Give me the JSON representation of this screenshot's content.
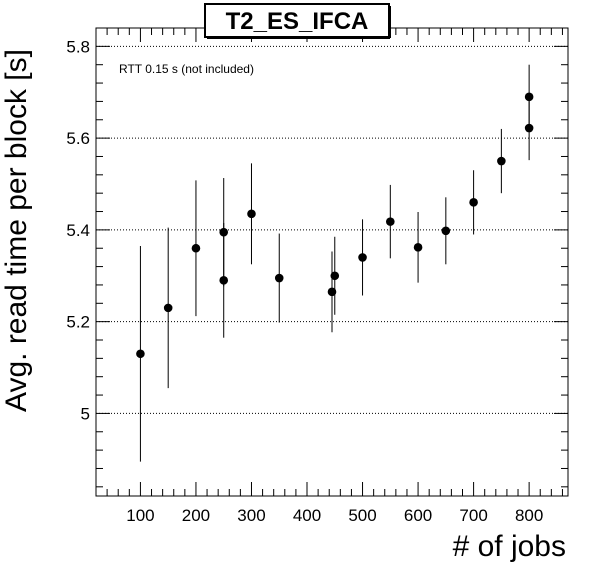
{
  "chart_data": {
    "type": "scatter",
    "title": "T2_ES_IFCA",
    "xlabel": "# of jobs",
    "ylabel": "Avg. read time per block [s]",
    "annotation": "RTT 0.15 s (not included)",
    "xlim": [
      20,
      870
    ],
    "ylim": [
      4.82,
      5.84
    ],
    "x_ticks": [
      100,
      200,
      300,
      400,
      500,
      600,
      700,
      800
    ],
    "x_tick_labels": [
      "100",
      "200",
      "300",
      "400",
      "500",
      "600",
      "700",
      "800"
    ],
    "y_ticks": [
      5.0,
      5.2,
      5.4,
      5.6,
      5.8
    ],
    "y_tick_labels": [
      "5",
      "5.2",
      "5.4",
      "5.6",
      "5.8"
    ],
    "grid": "horizontal dotted",
    "color": "#000000",
    "points": [
      {
        "x": 100,
        "y": 5.13,
        "err": 0.235
      },
      {
        "x": 150,
        "y": 5.23,
        "err": 0.175
      },
      {
        "x": 200,
        "y": 5.36,
        "err": 0.148
      },
      {
        "x": 250,
        "y": 5.395,
        "err": 0.118
      },
      {
        "x": 250,
        "y": 5.29,
        "err": 0.125
      },
      {
        "x": 300,
        "y": 5.435,
        "err": 0.11
      },
      {
        "x": 350,
        "y": 5.295,
        "err": 0.097
      },
      {
        "x": 445,
        "y": 5.265,
        "err": 0.088
      },
      {
        "x": 450,
        "y": 5.3,
        "err": 0.085
      },
      {
        "x": 500,
        "y": 5.34,
        "err": 0.083
      },
      {
        "x": 550,
        "y": 5.418,
        "err": 0.08
      },
      {
        "x": 600,
        "y": 5.362,
        "err": 0.077
      },
      {
        "x": 650,
        "y": 5.398,
        "err": 0.073
      },
      {
        "x": 700,
        "y": 5.46,
        "err": 0.07
      },
      {
        "x": 750,
        "y": 5.55,
        "err": 0.07
      },
      {
        "x": 800,
        "y": 5.622,
        "err": 0.07
      },
      {
        "x": 800,
        "y": 5.69,
        "err": 0.07
      }
    ]
  }
}
